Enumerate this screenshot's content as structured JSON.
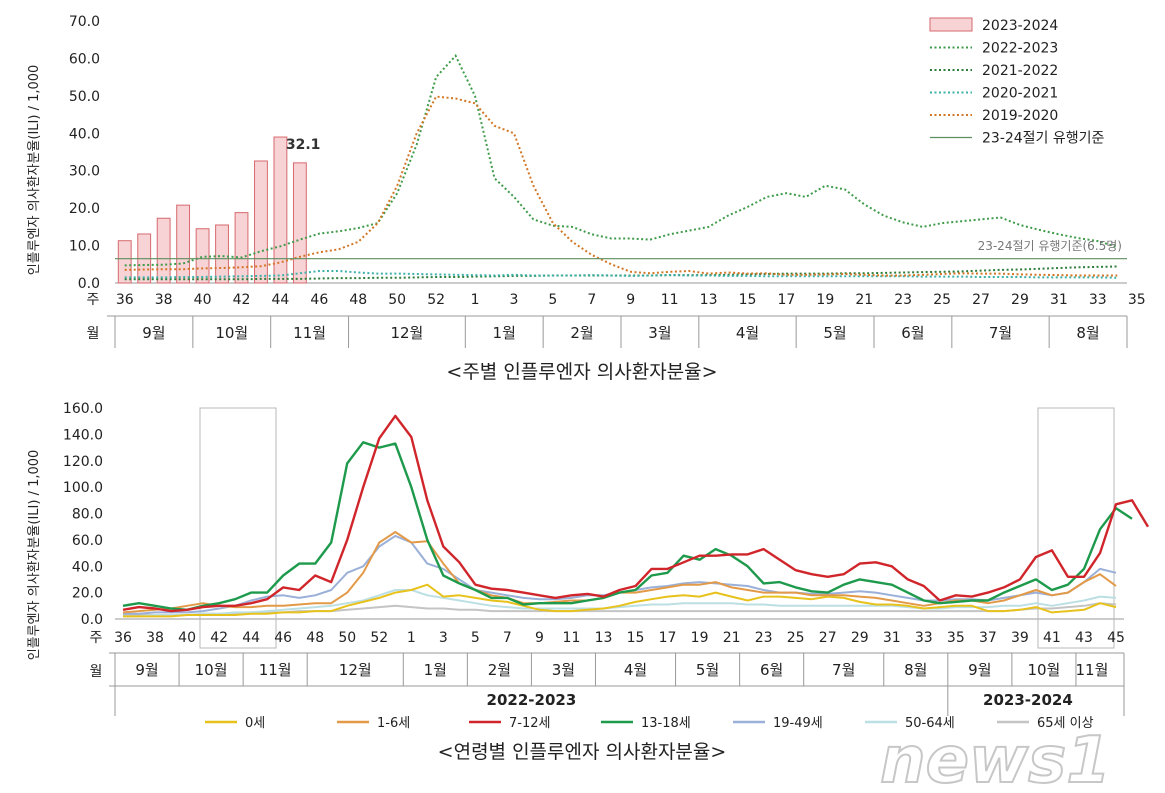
{
  "colors": {
    "s2324_fill": "#f7d3d5",
    "s2324_stroke": "#d66a6e",
    "s2223": "#3f9b4a",
    "s2122": "#2f7d3a",
    "s2021": "#3cb1a8",
    "s1920": "#d37624",
    "threshold": "#5e8e5e",
    "age0": "#e8c21c",
    "age1_6": "#e39a48",
    "age7_12": "#d0262b",
    "age13_18": "#1e9a4c",
    "age19_49": "#9ab0d8",
    "age50_64": "#bcdfe4",
    "age65": "#c4c4c4"
  },
  "chart_data": [
    {
      "type": "bar",
      "ylabel": "인플루엔자 의사환자분율(ILI) / 1,000",
      "ylim": [
        0,
        70
      ],
      "yticks": [
        "0.0",
        "10.0",
        "20.0",
        "30.0",
        "40.0",
        "50.0",
        "60.0",
        "70.0"
      ],
      "week_row_label": "주",
      "month_row_label": "월",
      "weeks": [
        36,
        37,
        38,
        39,
        40,
        41,
        42,
        43,
        44,
        45,
        46,
        47,
        48,
        49,
        50,
        51,
        52,
        1,
        2,
        3,
        4,
        5,
        6,
        7,
        8,
        9,
        10,
        11,
        12,
        13,
        14,
        15,
        16,
        17,
        18,
        19,
        20,
        21,
        22,
        23,
        24,
        25,
        26,
        27,
        28,
        29,
        30,
        31,
        32,
        33,
        34,
        35
      ],
      "week_tick_labels": [
        "36",
        "38",
        "40",
        "42",
        "44",
        "46",
        "48",
        "50",
        "52",
        "1",
        "3",
        "5",
        "7",
        "9",
        "11",
        "13",
        "15",
        "17",
        "19",
        "21",
        "23",
        "25",
        "27",
        "29",
        "31",
        "33",
        "35"
      ],
      "months": [
        {
          "label": "9월",
          "span": [
            0,
            4
          ]
        },
        {
          "label": "10월",
          "span": [
            4,
            8
          ]
        },
        {
          "label": "11월",
          "span": [
            8,
            12
          ]
        },
        {
          "label": "12월",
          "span": [
            12,
            18
          ]
        },
        {
          "label": "1월",
          "span": [
            18,
            22
          ]
        },
        {
          "label": "2월",
          "span": [
            22,
            26
          ]
        },
        {
          "label": "3월",
          "span": [
            26,
            30
          ]
        },
        {
          "label": "4월",
          "span": [
            30,
            35
          ]
        },
        {
          "label": "5월",
          "span": [
            35,
            39
          ]
        },
        {
          "label": "6월",
          "span": [
            39,
            43
          ]
        },
        {
          "label": "7월",
          "span": [
            43,
            48
          ]
        },
        {
          "label": "8월",
          "span": [
            48,
            52
          ]
        }
      ],
      "bars": {
        "name": "2023-2024",
        "values": [
          11.3,
          13.1,
          17.3,
          20.8,
          14.5,
          15.5,
          18.8,
          32.6,
          39.0,
          32.1
        ]
      },
      "bar_label": {
        "index": 9,
        "text": "32.1"
      },
      "series": [
        {
          "name": "2022-2023",
          "values": [
            4.7,
            4.8,
            4.9,
            5.2,
            7.0,
            7.2,
            6.8,
            8.5,
            9.8,
            11.6,
            13.2,
            13.8,
            14.7,
            16.0,
            24.0,
            37.0,
            55.0,
            60.7,
            50.0,
            28.0,
            23.0,
            17.0,
            15.3,
            15.0,
            13.0,
            11.9,
            11.9,
            11.6,
            13.0,
            14.0,
            15.0,
            18.0,
            20.3,
            23.0,
            24.0,
            23.0,
            26.0,
            25.0,
            21.0,
            18.0,
            16.2,
            15.0,
            16.0,
            16.5,
            17.0,
            17.5,
            15.5,
            14.2,
            13.0,
            12.0,
            11.2,
            9.6
          ]
        },
        {
          "name": "2021-2022",
          "values": [
            1.0,
            1.0,
            1.0,
            1.0,
            1.0,
            1.0,
            1.0,
            1.1,
            1.1,
            1.1,
            1.2,
            1.3,
            1.3,
            1.4,
            1.4,
            1.5,
            1.6,
            1.6,
            1.7,
            1.8,
            1.9,
            1.9,
            2.0,
            2.0,
            2.0,
            2.0,
            2.0,
            2.0,
            2.1,
            2.1,
            2.1,
            2.2,
            2.3,
            2.4,
            2.5,
            2.5,
            2.5,
            2.6,
            2.6,
            2.7,
            2.8,
            2.9,
            3.0,
            3.1,
            3.3,
            3.5,
            3.6,
            3.8,
            4.0,
            4.2,
            4.3,
            4.4
          ]
        },
        {
          "name": "2020-2021",
          "values": [
            1.5,
            1.5,
            1.5,
            1.6,
            1.6,
            1.7,
            1.8,
            1.9,
            2.0,
            2.6,
            3.2,
            3.2,
            2.8,
            2.5,
            2.5,
            2.4,
            2.3,
            2.2,
            2.1,
            2.0,
            2.2,
            2.0,
            2.0,
            2.0,
            2.1,
            2.0,
            1.9,
            2.0,
            2.1,
            2.0,
            2.0,
            1.9,
            1.9,
            1.8,
            1.8,
            1.8,
            1.8,
            1.8,
            1.8,
            1.8,
            1.8,
            1.7,
            1.7,
            1.7,
            1.6,
            1.6,
            1.6,
            1.5,
            1.5,
            1.5,
            1.5,
            1.4
          ]
        },
        {
          "name": "2019-2020",
          "values": [
            3.5,
            3.6,
            3.7,
            3.7,
            3.9,
            4.0,
            4.2,
            4.5,
            5.5,
            7.0,
            8.2,
            9.0,
            11.0,
            16.0,
            26.0,
            40.0,
            49.8,
            49.3,
            48.0,
            42.0,
            40.0,
            26.0,
            16.0,
            11.0,
            7.5,
            5.0,
            3.0,
            2.6,
            3.0,
            3.2,
            2.5,
            2.8,
            2.5,
            2.6,
            2.2,
            2.2,
            2.3,
            2.4,
            2.2,
            2.0,
            2.0,
            2.2,
            2.4,
            2.6,
            2.5,
            2.5,
            2.3,
            2.2,
            2.1,
            2.0,
            2.0,
            2.0
          ]
        }
      ],
      "threshold": {
        "name": "23-24절기 유행기준",
        "value": 6.5,
        "annotation": "23-24절기 유행기준(6.5명)"
      },
      "legend": [
        "2023-2024",
        "2022-2023",
        "2021-2022",
        "2020-2021",
        "2019-2020",
        "23-24절기 유행기준"
      ],
      "caption": "<주별 인플루엔자 의사환자분율>"
    },
    {
      "type": "line",
      "ylabel": "인플루엔자 의사환자분율(ILI) / 1,000",
      "ylim": [
        0,
        160
      ],
      "yticks": [
        "0.0",
        "20.0",
        "40.0",
        "60.0",
        "80.0",
        "100.0",
        "120.0",
        "140.0",
        "160.0"
      ],
      "week_row_label": "주",
      "month_row_label": "월",
      "week_tick_labels": [
        "36",
        "38",
        "40",
        "42",
        "44",
        "46",
        "48",
        "50",
        "52",
        "1",
        "3",
        "5",
        "7",
        "9",
        "11",
        "13",
        "15",
        "17",
        "19",
        "21",
        "23",
        "25",
        "27",
        "29",
        "31",
        "33",
        "35",
        "37",
        "39",
        "41",
        "43",
        "45"
      ],
      "months": [
        {
          "label": "9월",
          "span": [
            0,
            4
          ]
        },
        {
          "label": "10월",
          "span": [
            4,
            8
          ]
        },
        {
          "label": "11월",
          "span": [
            8,
            12
          ]
        },
        {
          "label": "12월",
          "span": [
            12,
            18
          ]
        },
        {
          "label": "1월",
          "span": [
            18,
            22
          ]
        },
        {
          "label": "2월",
          "span": [
            22,
            26
          ]
        },
        {
          "label": "3월",
          "span": [
            26,
            30
          ]
        },
        {
          "label": "4월",
          "span": [
            30,
            35
          ]
        },
        {
          "label": "5월",
          "span": [
            35,
            39
          ]
        },
        {
          "label": "6월",
          "span": [
            39,
            43
          ]
        },
        {
          "label": "7월",
          "span": [
            43,
            48
          ]
        },
        {
          "label": "8월",
          "span": [
            48,
            52
          ]
        },
        {
          "label": "9월",
          "span": [
            52,
            56
          ]
        },
        {
          "label": "10월",
          "span": [
            56,
            60
          ]
        },
        {
          "label": "11월",
          "span": [
            60,
            62
          ]
        }
      ],
      "seasons": [
        {
          "label": "2022-2023",
          "span": [
            0,
            52
          ]
        },
        {
          "label": "2023-2024",
          "span": [
            52,
            62
          ]
        }
      ],
      "series": [
        {
          "name": "0세",
          "values": [
            2,
            2,
            2,
            2,
            3,
            3,
            3,
            3,
            4,
            4,
            5,
            5,
            6,
            6,
            10,
            13,
            16,
            20,
            22,
            26,
            17,
            18,
            16,
            14,
            13,
            10,
            7,
            6,
            6,
            7,
            8,
            10,
            13,
            15,
            17,
            18,
            17,
            20,
            17,
            14,
            17,
            17,
            16,
            15,
            17,
            16,
            13,
            11,
            11,
            10,
            8,
            9,
            10,
            10,
            6,
            6,
            7,
            9,
            5,
            6,
            7,
            12,
            9
          ]
        },
        {
          "name": "1-6세",
          "values": [
            5,
            6,
            7,
            8,
            10,
            12,
            10,
            9,
            9,
            10,
            10,
            11,
            12,
            12,
            20,
            35,
            58,
            66,
            58,
            59,
            42,
            27,
            22,
            18,
            16,
            12,
            12,
            13,
            14,
            14,
            16,
            20,
            20,
            22,
            24,
            26,
            26,
            28,
            24,
            22,
            20,
            20,
            20,
            18,
            18,
            18,
            17,
            16,
            14,
            12,
            10,
            12,
            14,
            14,
            12,
            14,
            18,
            22,
            18,
            20,
            28,
            34,
            25
          ]
        },
        {
          "name": "7-12세",
          "values": [
            7,
            9,
            8,
            6,
            7,
            9,
            10,
            10,
            12,
            15,
            24,
            22,
            33,
            28,
            60,
            100,
            137,
            154,
            138,
            90,
            55,
            43,
            26,
            23,
            22,
            20,
            18,
            16,
            18,
            19,
            17,
            22,
            25,
            38,
            38,
            43,
            48,
            48,
            49,
            49,
            53,
            45,
            37,
            34,
            32,
            34,
            42,
            43,
            40,
            30,
            25,
            14,
            18,
            17,
            20,
            24,
            30,
            47,
            52,
            32,
            32,
            50,
            87,
            90,
            70
          ]
        },
        {
          "name": "13-18세",
          "values": [
            10,
            12,
            10,
            8,
            7,
            10,
            12,
            15,
            20,
            20,
            33,
            42,
            42,
            58,
            118,
            134,
            130,
            133,
            100,
            60,
            33,
            27,
            22,
            16,
            16,
            11,
            12,
            12,
            12,
            14,
            16,
            20,
            22,
            33,
            35,
            48,
            45,
            53,
            48,
            40,
            27,
            28,
            24,
            21,
            20,
            26,
            30,
            28,
            26,
            20,
            14,
            12,
            13,
            14,
            14,
            20,
            25,
            30,
            22,
            26,
            38,
            68,
            84,
            76
          ]
        },
        {
          "name": "19-49세",
          "values": [
            4,
            4,
            5,
            5,
            5,
            6,
            8,
            10,
            14,
            17,
            18,
            16,
            18,
            22,
            35,
            40,
            55,
            63,
            58,
            42,
            38,
            30,
            22,
            20,
            18,
            16,
            15,
            15,
            16,
            18,
            18,
            20,
            22,
            24,
            25,
            27,
            28,
            27,
            26,
            25,
            22,
            20,
            20,
            19,
            19,
            20,
            21,
            20,
            18,
            16,
            14,
            14,
            15,
            15,
            14,
            16,
            18,
            20,
            18,
            20,
            28,
            38,
            35
          ]
        },
        {
          "name": "50-64세",
          "values": [
            2,
            2,
            3,
            3,
            3,
            4,
            4,
            5,
            5,
            6,
            7,
            8,
            9,
            10,
            12,
            14,
            18,
            22,
            22,
            18,
            16,
            14,
            12,
            10,
            9,
            8,
            8,
            8,
            8,
            8,
            8,
            9,
            10,
            11,
            11,
            12,
            12,
            12,
            12,
            11,
            11,
            10,
            10,
            10,
            10,
            10,
            10,
            10,
            10,
            9,
            8,
            8,
            9,
            9,
            9,
            10,
            10,
            12,
            10,
            12,
            14,
            17,
            16
          ]
        },
        {
          "name": "65세 이상",
          "values": [
            3,
            3,
            3,
            3,
            3,
            4,
            4,
            4,
            5,
            5,
            5,
            6,
            6,
            6,
            7,
            8,
            9,
            10,
            9,
            8,
            8,
            7,
            7,
            6,
            6,
            6,
            6,
            6,
            6,
            6,
            6,
            6,
            6,
            6,
            6,
            6,
            6,
            6,
            6,
            6,
            6,
            6,
            6,
            6,
            6,
            6,
            6,
            6,
            6,
            6,
            6,
            6,
            6,
            6,
            6,
            6,
            7,
            8,
            8,
            9,
            10,
            12,
            11
          ]
        }
      ],
      "legend": [
        "0세",
        "1-6세",
        "7-12세",
        "13-18세",
        "19-49세",
        "50-64세",
        "65세 이상"
      ],
      "caption": "<연령별 인플루엔자 의사환자분율>"
    }
  ],
  "watermark": "news1"
}
